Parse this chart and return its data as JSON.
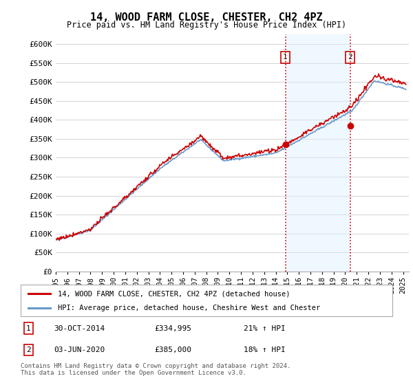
{
  "title": "14, WOOD FARM CLOSE, CHESTER, CH2 4PZ",
  "subtitle": "Price paid vs. HM Land Registry's House Price Index (HPI)",
  "ylim": [
    0,
    620000
  ],
  "xlim_start": 1995.0,
  "xlim_end": 2025.5,
  "red_line_color": "#cc0000",
  "blue_line_color": "#6699cc",
  "vline_color": "#cc0000",
  "background_color": "#ffffff",
  "grid_color": "#cccccc",
  "annotation_1": {
    "label": "1",
    "date": "30-OCT-2014",
    "price": 334995,
    "pct": "21%",
    "dir": "↑",
    "x_year": 2014.83
  },
  "annotation_2": {
    "label": "2",
    "date": "03-JUN-2020",
    "price": 385000,
    "pct": "18%",
    "dir": "↑",
    "x_year": 2020.42
  },
  "legend_label_red": "14, WOOD FARM CLOSE, CHESTER, CH2 4PZ (detached house)",
  "legend_label_blue": "HPI: Average price, detached house, Cheshire West and Chester",
  "footer": "Contains HM Land Registry data © Crown copyright and database right 2024.\nThis data is licensed under the Open Government Licence v3.0.",
  "shade_color": "#ddeeff",
  "shade_alpha": 0.45
}
